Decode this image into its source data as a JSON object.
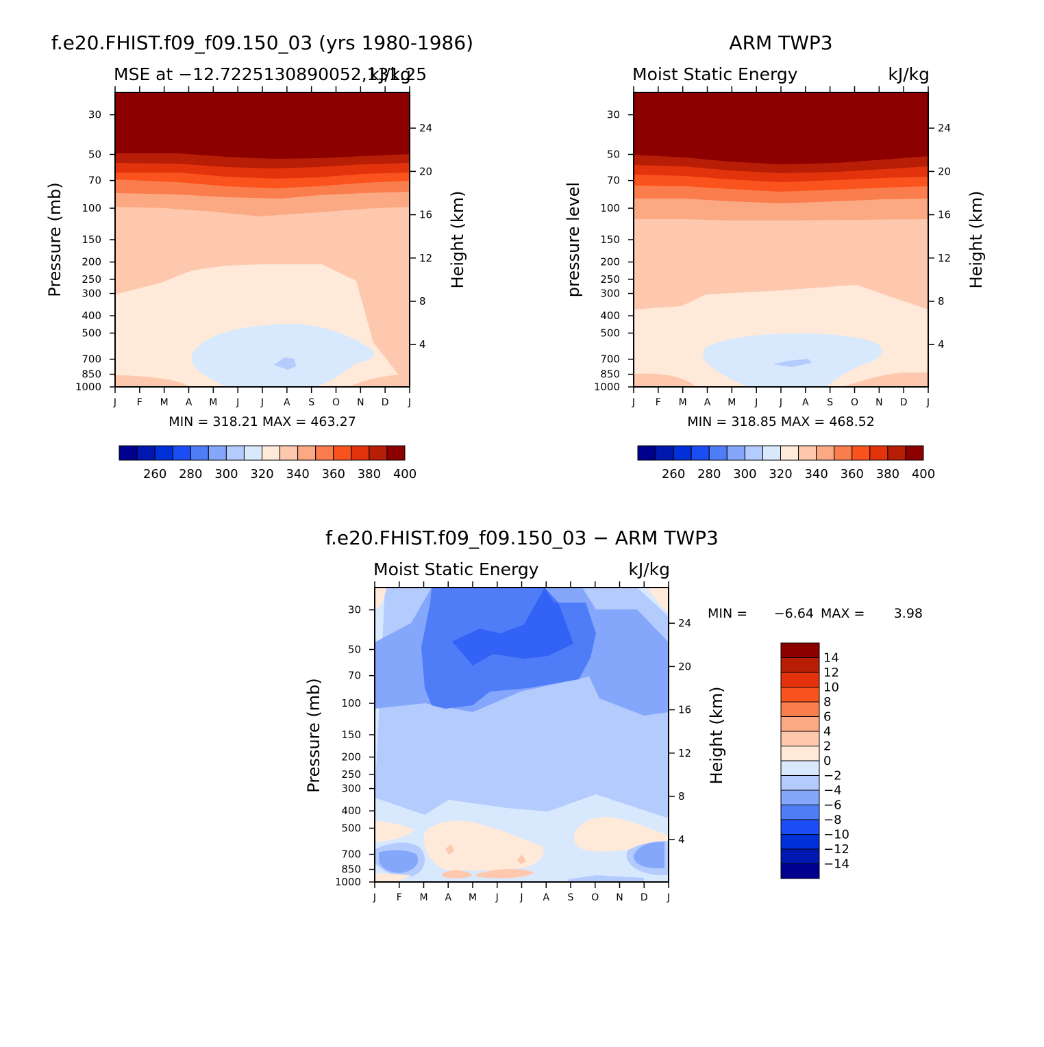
{
  "chart_data": [
    {
      "type": "heatmap",
      "title": "f.e20.FHIST.f09_f09.150_03 (yrs 1980-1986)",
      "subtitle_left": "MSE at −12.7225130890052,131.25",
      "subtitle_right": "kJ/kg",
      "ylabel": "Pressure (mb)",
      "ylabel_right": "Height (km)",
      "x": [
        "J",
        "F",
        "M",
        "A",
        "M",
        "J",
        "J",
        "A",
        "S",
        "O",
        "N",
        "D",
        "J"
      ],
      "pressure_ticks": [
        "30",
        "50",
        "70",
        "100",
        "150",
        "200",
        "250",
        "300",
        "400",
        "500",
        "700",
        "850",
        "1000"
      ],
      "height_ticks": [
        "24",
        "20",
        "16",
        "12",
        "8",
        "4"
      ],
      "stats": "MIN = 318.21 MAX = 463.27",
      "colorbar": {
        "labels": [
          "260",
          "280",
          "300",
          "320",
          "340",
          "360",
          "380",
          "400"
        ],
        "colors": [
          "#00008f",
          "#0017b0",
          "#0030d8",
          "#1b4df5",
          "#4f7df7",
          "#84a7fb",
          "#b4cbfd",
          "#d9e9fd",
          "#ffe9d9",
          "#fdc8ad",
          "#fba982",
          "#fa7d4e",
          "#fa531d",
          "#e3330c",
          "#b71e05",
          "#8c0000"
        ]
      }
    },
    {
      "type": "heatmap",
      "title": "ARM TWP3",
      "subtitle_left": "Moist Static Energy",
      "subtitle_right": "kJ/kg",
      "ylabel": "pressure level",
      "ylabel_right": "Height (km)",
      "x": [
        "J",
        "F",
        "M",
        "A",
        "M",
        "J",
        "J",
        "A",
        "S",
        "O",
        "N",
        "D",
        "J"
      ],
      "pressure_ticks": [
        "30",
        "50",
        "70",
        "100",
        "150",
        "200",
        "250",
        "300",
        "400",
        "500",
        "700",
        "850",
        "1000"
      ],
      "height_ticks": [
        "24",
        "20",
        "16",
        "12",
        "8",
        "4"
      ],
      "stats": "MIN = 318.85 MAX = 468.52",
      "colorbar": {
        "labels": [
          "260",
          "280",
          "300",
          "320",
          "340",
          "360",
          "380",
          "400"
        ],
        "colors": [
          "#00008f",
          "#0017b0",
          "#0030d8",
          "#1b4df5",
          "#4f7df7",
          "#84a7fb",
          "#b4cbfd",
          "#d9e9fd",
          "#ffe9d9",
          "#fdc8ad",
          "#fba982",
          "#fa7d4e",
          "#fa531d",
          "#e3330c",
          "#b71e05",
          "#8c0000"
        ]
      }
    },
    {
      "type": "heatmap",
      "title": "f.e20.FHIST.f09_f09.150_03 − ARM TWP3",
      "subtitle_left": "Moist Static Energy",
      "subtitle_right": "kJ/kg",
      "ylabel": "Pressure (mb)",
      "ylabel_right": "Height (km)",
      "x": [
        "J",
        "F",
        "M",
        "A",
        "M",
        "J",
        "J",
        "A",
        "S",
        "O",
        "N",
        "D",
        "J"
      ],
      "pressure_ticks": [
        "30",
        "50",
        "70",
        "100",
        "150",
        "200",
        "250",
        "300",
        "400",
        "500",
        "700",
        "850",
        "1000"
      ],
      "height_ticks": [
        "24",
        "20",
        "16",
        "12",
        "8",
        "4"
      ],
      "stats_min_label": "MIN =",
      "stats_min": "−6.64",
      "stats_max_label": "MAX =",
      "stats_max": "3.98",
      "colorbar": {
        "labels": [
          "14",
          "12",
          "10",
          "8",
          "6",
          "4",
          "2",
          "0",
          "−2",
          "−4",
          "−6",
          "−8",
          "−10",
          "−12",
          "−14"
        ],
        "colors": [
          "#8c0000",
          "#b71e05",
          "#e3330c",
          "#fa531d",
          "#fa7d4e",
          "#fba982",
          "#fdc8ad",
          "#ffe9d9",
          "#d9e9fd",
          "#b4cbfd",
          "#84a7fb",
          "#4f7df7",
          "#1b4df5",
          "#0030d8",
          "#0017b0",
          "#00008f"
        ]
      }
    }
  ]
}
